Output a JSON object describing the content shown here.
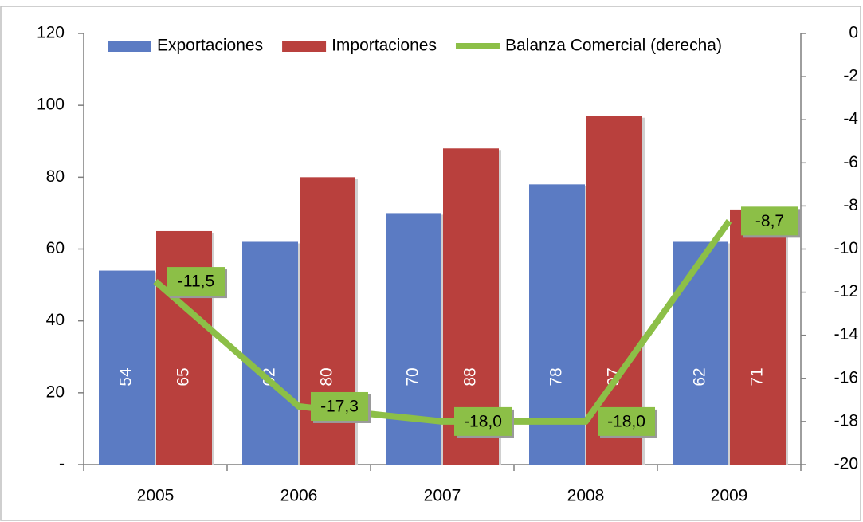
{
  "chart_data": {
    "type": "bar",
    "categories": [
      "2005",
      "2006",
      "2007",
      "2008",
      "2009"
    ],
    "series": [
      {
        "name": "Exportaciones",
        "color": "#5b7bc3",
        "type": "bar",
        "values": [
          54,
          62,
          70,
          78,
          62
        ]
      },
      {
        "name": "Importaciones",
        "color": "#b9403d",
        "type": "bar",
        "values": [
          65,
          80,
          88,
          97,
          71
        ]
      },
      {
        "name": "Balanza Comercial (derecha)",
        "color": "#8cbf47",
        "type": "line",
        "axis": "y2",
        "values": [
          -11.5,
          -17.3,
          -18.0,
          -18.0,
          -8.7
        ],
        "value_labels": [
          "-11,5",
          "-17,3",
          "-18,0",
          "-18,0",
          "-8,7"
        ]
      }
    ],
    "ylim": [
      0,
      120
    ],
    "yticks": [
      {
        "value": 0,
        "label": "-"
      },
      20,
      40,
      60,
      80,
      100,
      120
    ],
    "y2lim": [
      -20,
      0
    ],
    "y2ticks": [
      -20,
      -18,
      -16,
      -14,
      -12,
      -10,
      -8,
      -6,
      -4,
      -2,
      0
    ],
    "legend": "top"
  }
}
